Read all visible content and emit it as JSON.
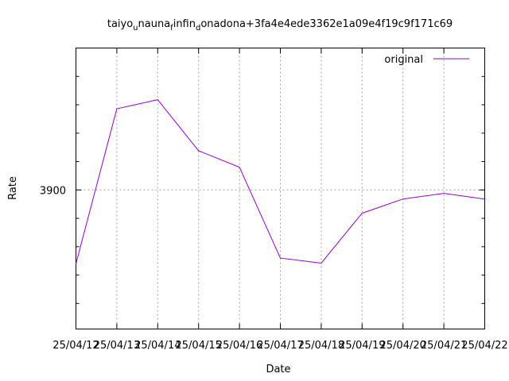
{
  "chart_data": {
    "type": "line",
    "title": {
      "parts": [
        {
          "text": "taiyo",
          "sub": false
        },
        {
          "text": "u",
          "sub": true
        },
        {
          "text": "nauna",
          "sub": false
        },
        {
          "text": "f",
          "sub": true
        },
        {
          "text": "infin",
          "sub": false
        },
        {
          "text": "d",
          "sub": true
        },
        {
          "text": "onadona+3fa4e4ede3362e1a09e4f19c9f171c69",
          "sub": false
        }
      ]
    },
    "xlabel": "Date",
    "ylabel": "Rate",
    "x": [
      "25/04/12",
      "25/04/13",
      "25/04/14",
      "25/04/15",
      "25/04/16",
      "25/04/17",
      "25/04/18",
      "25/04/19",
      "25/04/20",
      "25/04/21",
      "25/04/22"
    ],
    "x_tick_labels": [
      "25/04/12",
      "25/04/13",
      "25/04/14",
      "25/04/15",
      "25/04/16",
      "25/04/17",
      "25/04/18",
      "25/04/19",
      "25/04/20",
      "25/04/21",
      "25/04/22"
    ],
    "y_tick_labels": [
      "3900"
    ],
    "ylim": [
      3875.5,
      3925
    ],
    "grid": true,
    "legend_position": "top-right",
    "series": [
      {
        "name": "original",
        "color": "#9400d3",
        "values": [
          3887.0,
          3914.3,
          3915.9,
          3906.9,
          3904.0,
          3888.0,
          3887.1,
          3895.9,
          3898.4,
          3899.4,
          3898.4
        ]
      }
    ]
  }
}
